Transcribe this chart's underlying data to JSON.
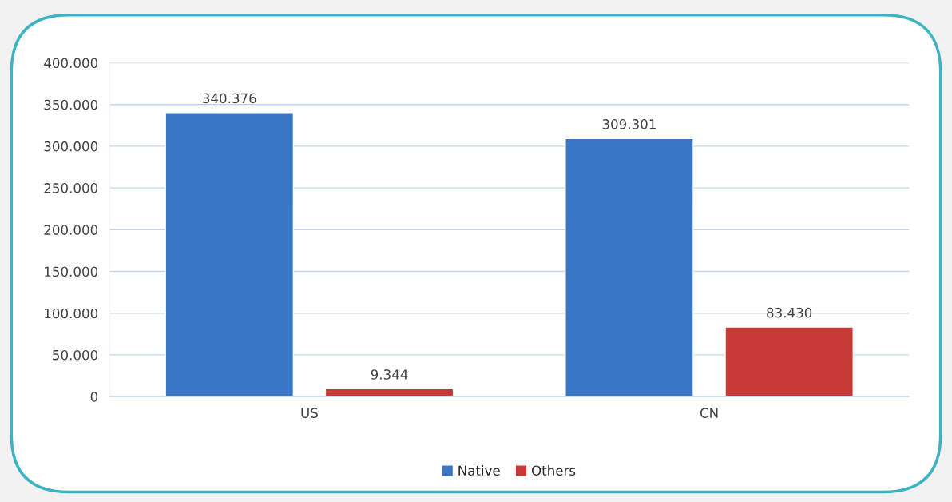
{
  "chart_data": {
    "type": "bar",
    "categories": [
      "US",
      "CN"
    ],
    "series": [
      {
        "name": "Native",
        "color": "#3a76c6",
        "values": [
          340376,
          309301
        ],
        "value_labels": [
          "340.376",
          "309.301"
        ]
      },
      {
        "name": "Others",
        "color": "#c53a34",
        "values": [
          9344,
          83430
        ],
        "value_labels": [
          "9.344",
          "83.430"
        ]
      }
    ],
    "ylim": [
      0,
      400000
    ],
    "yticks": [
      {
        "value": 0,
        "label": "0"
      },
      {
        "value": 50000,
        "label": "50.000"
      },
      {
        "value": 100000,
        "label": "100.000"
      },
      {
        "value": 150000,
        "label": "150.000"
      },
      {
        "value": 200000,
        "label": "200.000"
      },
      {
        "value": 250000,
        "label": "250.000"
      },
      {
        "value": 300000,
        "label": "300.000"
      },
      {
        "value": 350000,
        "label": "350.000"
      },
      {
        "value": 400000,
        "label": "400.000"
      }
    ],
    "grid": "y",
    "legend": "bottom"
  }
}
